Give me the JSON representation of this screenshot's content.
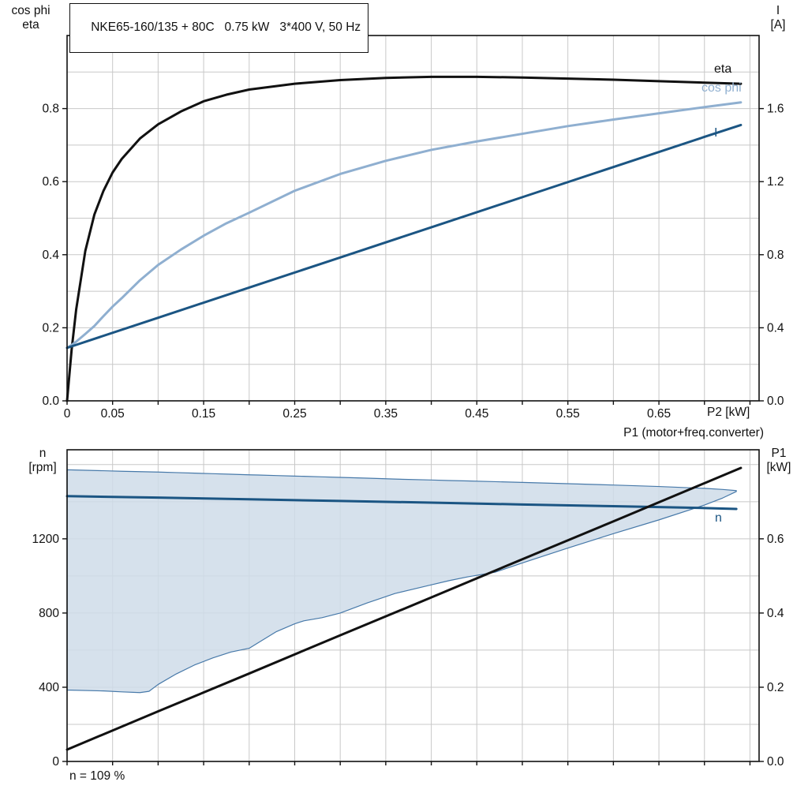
{
  "colors": {
    "black": "#111111",
    "dark_blue": "#1b5583",
    "light_blue": "#8fafd0",
    "band_fill": "#cfdce9",
    "band_edge": "#4779a9",
    "grid": "#c8c8c8",
    "frame": "#111111"
  },
  "chart_data": [
    {
      "type": "line",
      "title": "NKE65-160/135 + 80C   0.75 kW   3*400 V, 50 Hz",
      "x_label": "P2 [kW]",
      "y_left_label_lines": [
        "cos phi",
        "eta"
      ],
      "y_right_label_lines": [
        "I",
        "[A]"
      ],
      "x_range": [
        0,
        0.76
      ],
      "y_left_range": [
        0,
        1.0
      ],
      "y_right_range": [
        0,
        2.0
      ],
      "x_grid_step": 0.05,
      "y_grid_step": 0.1,
      "grid": true,
      "legend_position": "on-curve-right",
      "x_ticks": [
        0,
        0.05,
        0.15,
        0.25,
        0.35,
        0.45,
        0.55,
        0.65
      ],
      "x_tick_labels": [
        "0",
        "0.05",
        "0.15",
        "0.25",
        "0.35",
        "0.45",
        "0.55",
        "0.65"
      ],
      "y_left_ticks": [
        0,
        0.2,
        0.4,
        0.6,
        0.8
      ],
      "y_left_tick_labels": [
        "0.0",
        "0.2",
        "0.4",
        "0.6",
        "0.8"
      ],
      "y_right_ticks": [
        0,
        0.4,
        0.8,
        1.2,
        1.6
      ],
      "y_right_tick_labels": [
        "0.0",
        "0.4",
        "0.8",
        "1.2",
        "1.6"
      ],
      "series": [
        {
          "name": "eta",
          "axis": "left",
          "color": "#111111",
          "x": [
            0,
            0.005,
            0.01,
            0.02,
            0.03,
            0.04,
            0.05,
            0.06,
            0.08,
            0.1,
            0.125,
            0.15,
            0.175,
            0.2,
            0.25,
            0.3,
            0.35,
            0.4,
            0.45,
            0.5,
            0.55,
            0.6,
            0.65,
            0.7,
            0.74
          ],
          "values": [
            0,
            0.14,
            0.25,
            0.41,
            0.51,
            0.575,
            0.625,
            0.662,
            0.718,
            0.757,
            0.792,
            0.82,
            0.838,
            0.852,
            0.868,
            0.878,
            0.884,
            0.887,
            0.887,
            0.885,
            0.882,
            0.879,
            0.875,
            0.871,
            0.868
          ]
        },
        {
          "name": "cos phi",
          "axis": "left",
          "color": "#8fafd0",
          "x": [
            0,
            0.005,
            0.01,
            0.02,
            0.03,
            0.04,
            0.05,
            0.06,
            0.08,
            0.1,
            0.125,
            0.15,
            0.175,
            0.2,
            0.25,
            0.3,
            0.35,
            0.4,
            0.45,
            0.5,
            0.55,
            0.6,
            0.65,
            0.7,
            0.74
          ],
          "values": [
            0.145,
            0.153,
            0.162,
            0.183,
            0.205,
            0.232,
            0.258,
            0.281,
            0.33,
            0.372,
            0.414,
            0.452,
            0.486,
            0.515,
            0.575,
            0.621,
            0.657,
            0.687,
            0.71,
            0.731,
            0.752,
            0.77,
            0.787,
            0.804,
            0.817
          ]
        },
        {
          "name": "I",
          "axis": "right",
          "color": "#1b5583",
          "x": [
            0,
            0.1,
            0.2,
            0.3,
            0.4,
            0.5,
            0.6,
            0.7,
            0.74
          ],
          "values": [
            0.29,
            0.455,
            0.62,
            0.785,
            0.95,
            1.115,
            1.28,
            1.445,
            1.51
          ]
        }
      ]
    },
    {
      "type": "line",
      "line_title": "P1 (motor+freq.converter)",
      "annotation": "n = 109 %",
      "y_left_label_lines": [
        "n",
        "[rpm]"
      ],
      "y_right_label_lines": [
        "P1",
        "[kW]"
      ],
      "x_range": [
        0,
        0.76
      ],
      "y_left_range": [
        0,
        1680
      ],
      "y_right_range": [
        0,
        0.84
      ],
      "x_grid_step": 0.05,
      "y_grid_step": 200,
      "grid": true,
      "x_ticks": [],
      "x_tick_labels": null,
      "y_left_ticks": [
        0,
        400,
        800,
        1200
      ],
      "y_left_tick_labels": [
        "0",
        "400",
        "800",
        "1200"
      ],
      "y_right_ticks": [
        0,
        0.2,
        0.4,
        0.6
      ],
      "y_right_tick_labels": [
        "0.0",
        "0.2",
        "0.4",
        "0.6"
      ],
      "band": {
        "name": "speed-operating-range",
        "axis": "left",
        "fill": "#cfdce9",
        "stroke": "#4779a9",
        "x": [
          0,
          0.04,
          0.06,
          0.08,
          0.09,
          0.1,
          0.12,
          0.14,
          0.16,
          0.18,
          0.2,
          0.21,
          0.23,
          0.25,
          0.26,
          0.28,
          0.3,
          0.33,
          0.36,
          0.4,
          0.42,
          0.44,
          0.47,
          0.5,
          0.55,
          0.6,
          0.65,
          0.7,
          0.72,
          0.735
        ],
        "lower": [
          385,
          380,
          375,
          371,
          378,
          415,
          472,
          520,
          558,
          590,
          610,
          640,
          700,
          742,
          758,
          775,
          800,
          855,
          905,
          952,
          975,
          995,
          1020,
          1070,
          1150,
          1228,
          1302,
          1382,
          1420,
          1455
        ],
        "upper": [
          1572,
          1567,
          1564,
          1562,
          1561,
          1560,
          1557,
          1554,
          1551,
          1548,
          1545,
          1544,
          1541,
          1538,
          1537,
          1534,
          1531,
          1527,
          1522,
          1517,
          1514,
          1512,
          1508,
          1504,
          1497,
          1490,
          1482,
          1472,
          1466,
          1460
        ]
      },
      "series": [
        {
          "name": "n",
          "axis": "left",
          "color": "#1b5583",
          "x": [
            0,
            0.1,
            0.2,
            0.3,
            0.4,
            0.5,
            0.6,
            0.65,
            0.7,
            0.735
          ],
          "values": [
            1430,
            1422,
            1413,
            1404,
            1395,
            1385,
            1376,
            1371,
            1366,
            1361
          ]
        },
        {
          "name": "P1",
          "axis": "right",
          "color": "#111111",
          "x": [
            0,
            0.1,
            0.2,
            0.3,
            0.4,
            0.5,
            0.6,
            0.7,
            0.74
          ],
          "values": [
            0.032,
            0.135,
            0.237,
            0.34,
            0.442,
            0.545,
            0.647,
            0.75,
            0.791
          ]
        }
      ]
    }
  ]
}
